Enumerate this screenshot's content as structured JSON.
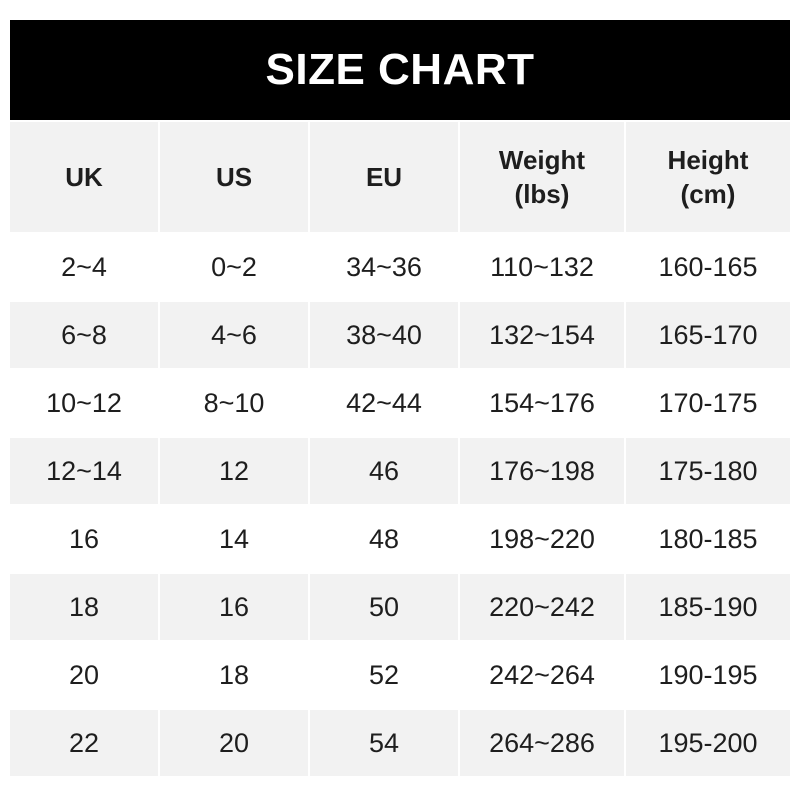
{
  "title": "SIZE CHART",
  "columns": [
    [
      "UK"
    ],
    [
      "US"
    ],
    [
      "EU"
    ],
    [
      "Weight",
      "(lbs)"
    ],
    [
      "Height",
      "(cm)"
    ]
  ],
  "rows": [
    [
      "2~4",
      "0~2",
      "34~36",
      "110~132",
      "160-165"
    ],
    [
      "6~8",
      "4~6",
      "38~40",
      "132~154",
      "165-170"
    ],
    [
      "10~12",
      "8~10",
      "42~44",
      "154~176",
      "170-175"
    ],
    [
      "12~14",
      "12",
      "46",
      "176~198",
      "175-180"
    ],
    [
      "16",
      "14",
      "48",
      "198~220",
      "180-185"
    ],
    [
      "18",
      "16",
      "50",
      "220~242",
      "185-190"
    ],
    [
      "20",
      "18",
      "52",
      "242~264",
      "190-195"
    ],
    [
      "22",
      "20",
      "54",
      "264~286",
      "195-200"
    ]
  ],
  "colors": {
    "header_bg": "#000000",
    "stripe": "#f2f2f2",
    "text": "#1e1e1e"
  }
}
